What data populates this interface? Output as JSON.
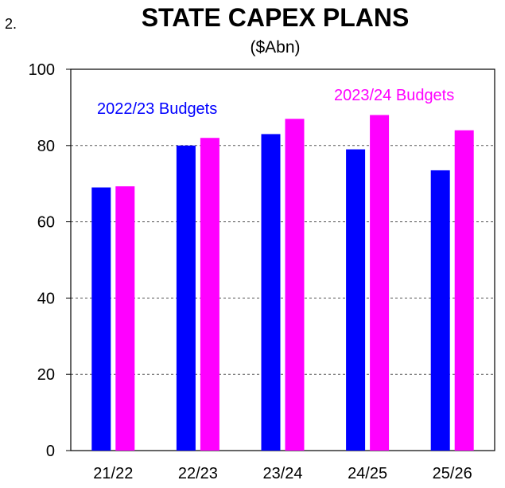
{
  "figure_number": "2.",
  "chart_data": {
    "type": "bar",
    "title": "STATE CAPEX PLANS",
    "subtitle": "($Abn)",
    "xlabel": "",
    "ylabel": "",
    "categories": [
      "21/22",
      "22/23",
      "23/24",
      "24/25",
      "25/26"
    ],
    "series": [
      {
        "name": "2022/23 Budgets",
        "color": "#0000ff",
        "values": [
          69,
          80,
          83,
          79,
          73.5
        ]
      },
      {
        "name": "2023/24 Budgets",
        "color": "#ff00ff",
        "values": [
          69.3,
          82,
          87,
          88,
          84
        ]
      }
    ],
    "ylim": [
      0,
      100
    ],
    "yticks": [
      "0",
      "20",
      "40",
      "60",
      "80",
      "100"
    ],
    "grid": true,
    "gridlines_at": [
      20,
      40,
      60,
      80
    ]
  }
}
